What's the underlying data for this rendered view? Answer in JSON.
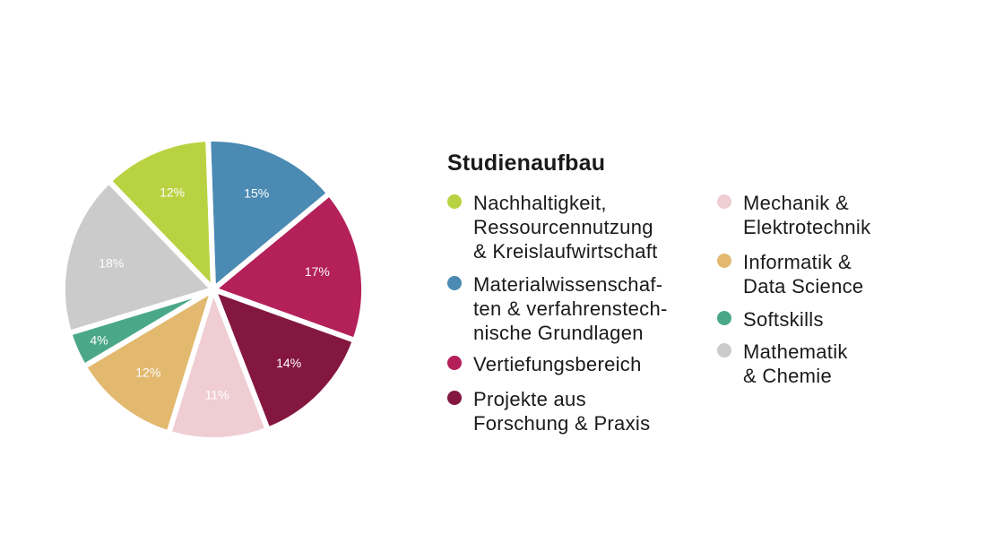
{
  "chart_data": {
    "type": "pie",
    "title": "Studienaufbau",
    "slices": [
      {
        "label": "Nachhaltigkeit,\nRessourcennutzung\n& Kreislaufwirtschaft",
        "value": 12,
        "value_label": "12%",
        "color": "#b9d241"
      },
      {
        "label": "Materialwissenschaf-\nten & verfahrenstech-\nnische Grundlagen",
        "value": 15,
        "value_label": "15%",
        "color": "#4b8ab2"
      },
      {
        "label": "Vertiefungsbereich",
        "value": 17,
        "value_label": "17%",
        "color": "#b3205a"
      },
      {
        "label": "Projekte aus\nForschung & Praxis",
        "value": 14,
        "value_label": "14%",
        "color": "#83173f"
      },
      {
        "label": "Mechanik &\nElektrotechnik",
        "value": 11,
        "value_label": "11%",
        "color": "#efcdd3"
      },
      {
        "label": "Informatik &\nData Science",
        "value": 12,
        "value_label": "12%",
        "color": "#e2b96f"
      },
      {
        "label": "Softskills",
        "value": 4,
        "value_label": "4%",
        "color": "#4aa888"
      },
      {
        "label": "Mathematik\n& Chemie",
        "value": 18,
        "value_label": "18%",
        "color": "#cbcbcb"
      }
    ]
  }
}
